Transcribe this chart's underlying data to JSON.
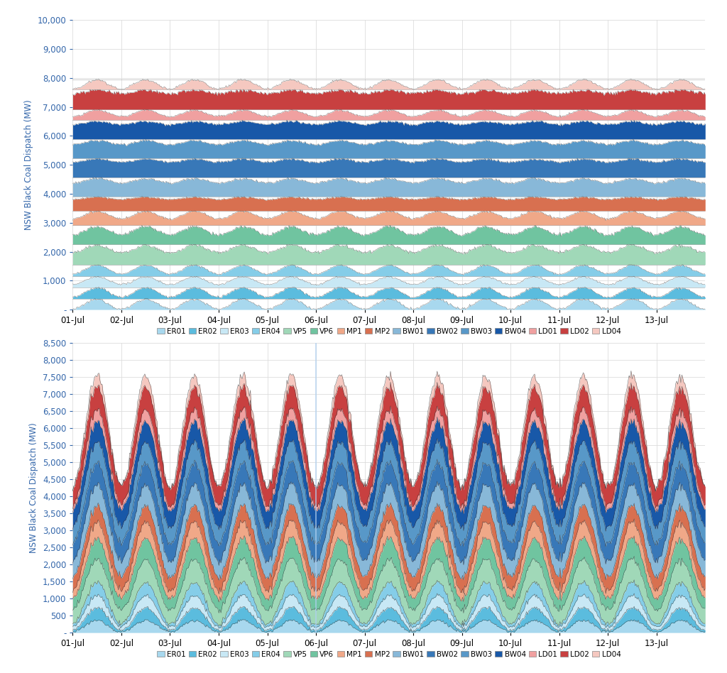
{
  "ylabel": "NSW Black Coal Dispatch (MW)",
  "date_labels": [
    "01-Jul",
    "02-Jul",
    "03-Jul",
    "04-Jul",
    "05-Jul",
    "06-Jul",
    "07-Jul",
    "08-Jul",
    "09-Jul",
    "10-Jul",
    "11-Jul",
    "12-Jul",
    "13-Jul"
  ],
  "legend_labels": [
    "ER01",
    "ER02",
    "ER03",
    "ER04",
    "VP5",
    "VP6",
    "MP1",
    "MP2",
    "BW01",
    "BW02",
    "BW03",
    "BW04",
    "LD01",
    "LD02",
    "LD04"
  ],
  "colors": {
    "ER01": "#a8d8ee",
    "ER02": "#5bbcde",
    "ER03": "#c8e8f5",
    "ER04": "#85cde8",
    "VP5": "#a0d8b8",
    "VP6": "#70c4a0",
    "MP1": "#f0a888",
    "MP2": "#d87050",
    "BW01": "#88b8d8",
    "BW02": "#3878b8",
    "BW03": "#5898c8",
    "BW04": "#1858a8",
    "LD01": "#f0a0a0",
    "LD02": "#c84040",
    "LD04": "#f5c8c0"
  },
  "upper_ylim": [
    0,
    10000
  ],
  "lower_ylim": [
    0,
    8500
  ],
  "upper_yticks": [
    0,
    1000,
    2000,
    3000,
    4000,
    5000,
    6000,
    7000,
    8000,
    9000,
    10000
  ],
  "lower_yticks": [
    0,
    500,
    1000,
    1500,
    2000,
    2500,
    3000,
    3500,
    4000,
    4500,
    5000,
    5500,
    6000,
    6500,
    7000,
    7500,
    8000,
    8500
  ],
  "capacities": {
    "ER01": 380,
    "ER02": 390,
    "ER03": 380,
    "ER04": 400,
    "VP5": 700,
    "VP6": 660,
    "MP1": 500,
    "MP2": 500,
    "BW01": 660,
    "BW02": 660,
    "BW03": 660,
    "BW04": 660,
    "LD01": 360,
    "LD02": 700,
    "LD04": 350
  },
  "n_days": 13,
  "n_per_day": 48
}
